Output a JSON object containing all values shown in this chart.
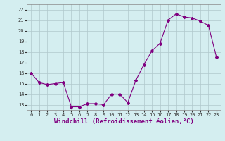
{
  "x": [
    0,
    1,
    2,
    3,
    4,
    5,
    6,
    7,
    8,
    9,
    10,
    11,
    12,
    13,
    14,
    15,
    16,
    17,
    18,
    19,
    20,
    21,
    22,
    23
  ],
  "y": [
    16.0,
    15.1,
    14.9,
    15.0,
    15.1,
    12.8,
    12.8,
    13.1,
    13.1,
    13.0,
    14.0,
    14.0,
    13.2,
    15.3,
    16.8,
    18.1,
    18.8,
    21.0,
    21.6,
    21.3,
    21.2,
    20.9,
    20.5,
    17.5
  ],
  "line_color": "#800080",
  "marker": "D",
  "marker_size": 2,
  "bg_color": "#d4eef0",
  "grid_color": "#b0c8cc",
  "xlabel": "Windchill (Refroidissement éolien,°C)",
  "xlim": [
    -0.5,
    23.5
  ],
  "ylim": [
    12.5,
    22.5
  ],
  "yticks": [
    13,
    14,
    15,
    16,
    17,
    18,
    19,
    20,
    21,
    22
  ],
  "xticks": [
    0,
    1,
    2,
    3,
    4,
    5,
    6,
    7,
    8,
    9,
    10,
    11,
    12,
    13,
    14,
    15,
    16,
    17,
    18,
    19,
    20,
    21,
    22,
    23
  ],
  "tick_fontsize": 5,
  "xlabel_fontsize": 6.5
}
